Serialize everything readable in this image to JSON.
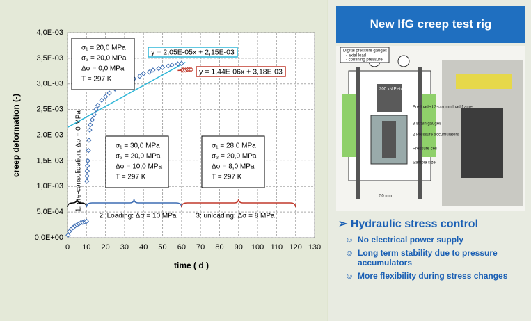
{
  "chart_data": {
    "type": "scatter",
    "xlabel": "time ( d )",
    "ylabel": "creep deformation (-)",
    "xlim": [
      0,
      130
    ],
    "xticks": [
      0,
      10,
      20,
      30,
      40,
      50,
      60,
      70,
      80,
      90,
      100,
      110,
      120,
      130
    ],
    "ylim": [
      0,
      0.004
    ],
    "yticks": [
      {
        "value": 0,
        "label": "0,0E+00"
      },
      {
        "value": 0.0005,
        "label": "5,0E-04"
      },
      {
        "value": 0.001,
        "label": "1,0E-03"
      },
      {
        "value": 0.0015,
        "label": "1,5E-03"
      },
      {
        "value": 0.002,
        "label": "2,0E-03"
      },
      {
        "value": 0.0025,
        "label": "2,5E-03"
      },
      {
        "value": 0.003,
        "label": "3,0E-03"
      },
      {
        "value": 0.0035,
        "label": "3,5E-03"
      },
      {
        "value": 0.004,
        "label": "4,0E-03"
      }
    ],
    "grid": true,
    "series": [
      {
        "color": "#3d6db3",
        "x": [
          0.3,
          1,
          2,
          3,
          4,
          5,
          6,
          7,
          8,
          9,
          10,
          10.2,
          10.3,
          10.4,
          10.5,
          10.7,
          11,
          11.3,
          11.7,
          12,
          13,
          14,
          15,
          16,
          18,
          20,
          22,
          25,
          28,
          30,
          33,
          35,
          38,
          40,
          43,
          45,
          48,
          50,
          53,
          55,
          58,
          60
        ],
        "values": [
          5e-05,
          0.00012,
          0.00017,
          0.0002,
          0.00023,
          0.00025,
          0.00027,
          0.00029,
          0.0003,
          0.00031,
          0.00032,
          0.0011,
          0.0012,
          0.0013,
          0.0014,
          0.0015,
          0.0017,
          0.0019,
          0.0021,
          0.0022,
          0.0023,
          0.0024,
          0.0025,
          0.00258,
          0.00268,
          0.00275,
          0.00282,
          0.0029,
          0.00295,
          0.003,
          0.00305,
          0.0031,
          0.00315,
          0.0032,
          0.00323,
          0.00327,
          0.0033,
          0.00332,
          0.00335,
          0.00337,
          0.00339,
          0.0034
        ]
      },
      {
        "color": "#c0392b",
        "x": [
          60.5,
          61,
          62,
          63,
          64,
          65
        ],
        "values": [
          0.00327,
          0.00327,
          0.00327,
          0.00328,
          0.00328,
          0.00328
        ]
      }
    ],
    "fits": [
      {
        "label": "y = 2,05E-05x + 2,15E-03",
        "color": "#2fb7d8",
        "x": [
          0,
          62
        ],
        "values": [
          0.00215,
          0.003421
        ]
      },
      {
        "label": "y = 1,44E-06x + 3,18E-03",
        "color": "#c0392b",
        "x": [
          58,
          66
        ],
        "values": [
          0.0032635,
          0.003275
        ]
      }
    ],
    "annotations": [
      {
        "lines": [
          "σ₁ = 20,0 MPa",
          "σ₃ = 20,0 MPa",
          "Δσ = 0,0 MPa",
          "T = 297 K"
        ]
      },
      {
        "lines": [
          "σ₁ = 30,0 MPa",
          "σ₃ = 20,0 MPa",
          "Δσ = 10,0 MPa",
          "T = 297 K"
        ]
      },
      {
        "lines": [
          "σ₁ = 28,0 MPa",
          "σ₃ = 20,0 MPa",
          "Δσ = 8,0 MPa",
          "T = 297 K"
        ]
      }
    ],
    "phases": [
      {
        "label": "1: pre-consolidation:  Δσ = 0 MPa"
      },
      {
        "label": "2: Loading:  Δσ = 10 MPa"
      },
      {
        "label": "3: unloading:  Δσ = 8 MPa"
      }
    ]
  },
  "panel": {
    "title": "New IfG creep test rig",
    "figure_labels": [
      "Digital pressure gauges",
      "- axial load",
      "- confining pressure",
      "200 kN Piston",
      "Pre-loaded 3-column load frame",
      "3 strain gauges",
      "2 Pressure accumulators",
      "Pressure cell",
      "Sample size:",
      "50 mm"
    ],
    "heading": "➢ Hydraulic stress control",
    "items": [
      {
        "icon": "☺",
        "text": "No electrical power supply"
      },
      {
        "icon": "☺",
        "text": "Long term stability due to pressure accumulators"
      },
      {
        "icon": "☺",
        "text": "More flexibility during stress changes"
      }
    ]
  }
}
